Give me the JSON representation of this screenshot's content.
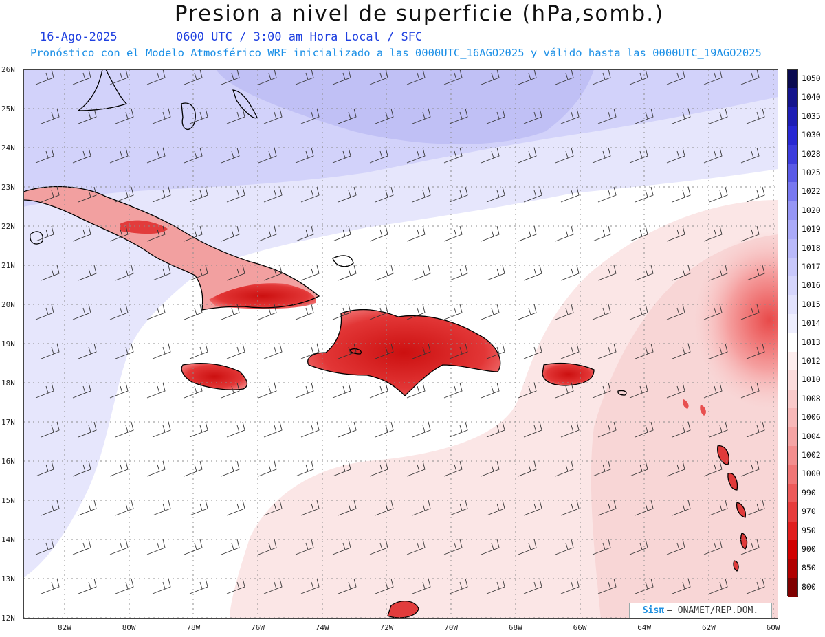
{
  "header": {
    "title": "Presion a nivel de superficie (hPa,somb.)",
    "date": "16-Ago-2025",
    "time": "0600 UTC / 3:00 am Hora Local / SFC",
    "model_line": "Pronóstico con el Modelo Atmosférico WRF inicializado a las 0000UTC_16AGO2025 y válido hasta las  0000UTC_19AGO2025"
  },
  "axes": {
    "lat_labels": [
      "26N",
      "25N",
      "24N",
      "23N",
      "22N",
      "21N",
      "20N",
      "19N",
      "18N",
      "17N",
      "16N",
      "15N",
      "14N",
      "13N",
      "12N"
    ],
    "lon_labels": [
      "82W",
      "80W",
      "78W",
      "76W",
      "74W",
      "72W",
      "70W",
      "68W",
      "66W",
      "64W",
      "62W",
      "60W"
    ]
  },
  "colorbar": {
    "levels": [
      "1050",
      "1040",
      "1035",
      "1030",
      "1028",
      "1025",
      "1022",
      "1020",
      "1019",
      "1018",
      "1017",
      "1016",
      "1015",
      "1014",
      "1013",
      "1012",
      "1010",
      "1008",
      "1006",
      "1004",
      "1002",
      "1000",
      "990",
      "970",
      "950",
      "900",
      "850",
      "800"
    ],
    "colors": [
      "#0a0a50",
      "#14148c",
      "#1e1eb4",
      "#2828d2",
      "#3c3cdc",
      "#5a5ae6",
      "#7878f0",
      "#9696f5",
      "#aaaaf8",
      "#b9b9fa",
      "#c8c8fb",
      "#d5d5fc",
      "#e2e2fd",
      "#eeeefe",
      "#ffffff",
      "#fdeeee",
      "#fbdcdc",
      "#f9caca",
      "#f7b8b8",
      "#f5a4a4",
      "#f38e8e",
      "#f07676",
      "#ec5a5a",
      "#e63c3c",
      "#e01e1e",
      "#d00000",
      "#b00000",
      "#800000"
    ]
  },
  "map": {
    "extent": {
      "lon_min": -83.2,
      "lon_max": -59.8,
      "lat_min": 11.9,
      "lat_max": 26.1
    },
    "background_colors": {
      "high_pressure": "#c4c4f6",
      "mid_pressure": "#e6e6fc",
      "neutral": "#ffffff",
      "low_pressure": "#fbe4e4",
      "cyclone": "#f49a9a",
      "land_low": "#e23c3c",
      "coastline": "#000000",
      "grid": "#8c8c8c"
    }
  },
  "credit": {
    "logo": "Sisπ",
    "text": "– ONAMET/REP.DOM."
  }
}
